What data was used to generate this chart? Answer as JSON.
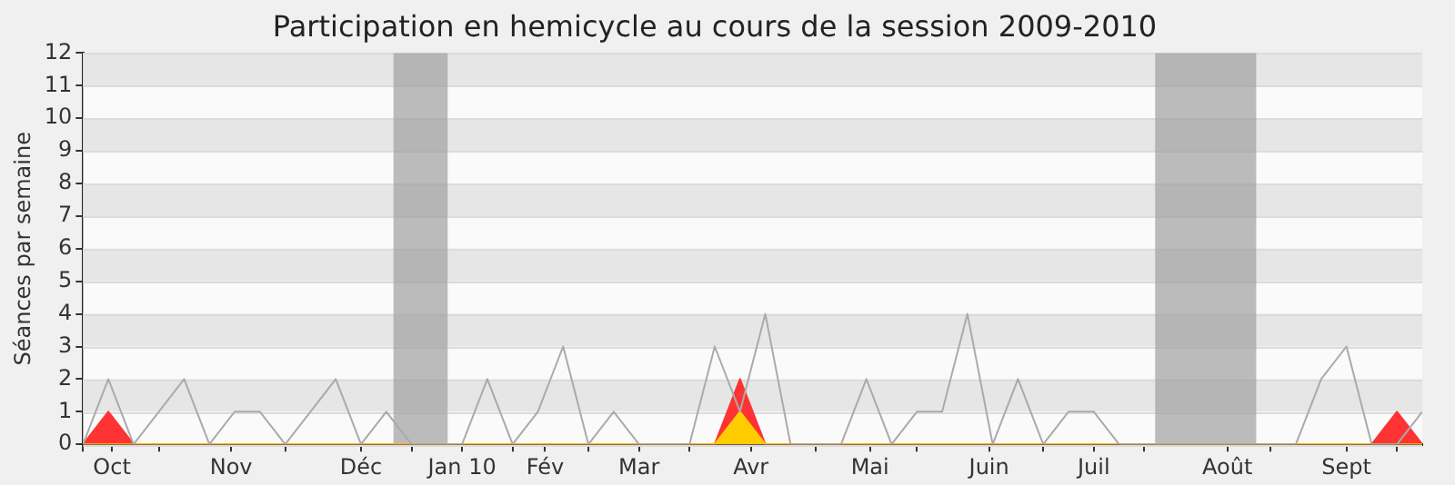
{
  "chart_data": {
    "type": "line",
    "title": "Participation en hemicycle au cours de la session 2009-2010",
    "ylabel": "Séances par semaine",
    "x": [
      "2009-09-28",
      "2009-10-05",
      "2009-10-12",
      "2009-10-19",
      "2009-10-26",
      "2009-11-02",
      "2009-11-09",
      "2009-11-16",
      "2009-11-23",
      "2009-11-30",
      "2009-12-07",
      "2009-12-14",
      "2009-12-21",
      "2009-12-28",
      "2010-01-04",
      "2010-01-11",
      "2010-01-18",
      "2010-01-25",
      "2010-02-01",
      "2010-02-08",
      "2010-02-15",
      "2010-02-22",
      "2010-03-01",
      "2010-03-08",
      "2010-03-15",
      "2010-03-22",
      "2010-03-29",
      "2010-04-05",
      "2010-04-12",
      "2010-04-19",
      "2010-04-26",
      "2010-05-03",
      "2010-05-10",
      "2010-05-17",
      "2010-05-24",
      "2010-05-31",
      "2010-06-07",
      "2010-06-14",
      "2010-06-21",
      "2010-06-28",
      "2010-07-05",
      "2010-07-12",
      "2010-07-19",
      "2010-07-26",
      "2010-08-02",
      "2010-08-09",
      "2010-08-16",
      "2010-08-23",
      "2010-08-30",
      "2010-09-06",
      "2010-09-13",
      "2010-09-20",
      "2010-09-27",
      "2010-10-04"
    ],
    "series": [
      {
        "color": "#aaaaaa",
        "values": [
          0,
          2,
          0,
          1,
          2,
          0,
          1,
          1,
          0,
          1,
          2,
          0,
          1,
          0,
          0,
          0,
          2,
          0,
          1,
          3,
          0,
          1,
          0,
          0,
          0,
          3,
          1,
          4,
          0,
          0,
          0,
          2,
          0,
          1,
          1,
          4,
          0,
          2,
          0,
          1,
          1,
          0,
          0,
          0,
          0,
          0,
          0,
          0,
          0,
          2,
          3,
          0,
          0,
          1
        ]
      },
      {
        "type": "area",
        "color": "#ff3333",
        "values": [
          0,
          1,
          0,
          0,
          0,
          0,
          0,
          0,
          0,
          0,
          0,
          0,
          0,
          0,
          0,
          0,
          0,
          0,
          0,
          0,
          0,
          0,
          0,
          0,
          0,
          0,
          2,
          0,
          0,
          0,
          0,
          0,
          0,
          0,
          0,
          0,
          0,
          0,
          0,
          0,
          0,
          0,
          0,
          0,
          0,
          0,
          0,
          0,
          0,
          0,
          0,
          0,
          1,
          0
        ]
      },
      {
        "type": "area",
        "color": "#ffcc00",
        "values": [
          0,
          0,
          0,
          0,
          0,
          0,
          0,
          0,
          0,
          0,
          0,
          0,
          0,
          0,
          0,
          0,
          0,
          0,
          0,
          0,
          0,
          0,
          0,
          0,
          0,
          0,
          1,
          0,
          0,
          0,
          0,
          0,
          0,
          0,
          0,
          0,
          0,
          0,
          0,
          0,
          0,
          0,
          0,
          0,
          0,
          0,
          0,
          0,
          0,
          0,
          0,
          0,
          0,
          0
        ]
      }
    ],
    "xlim": [
      "2009-09-28",
      "2010-10-04"
    ],
    "xticks": [
      {
        "value": "2009-09-28",
        "label": null
      },
      {
        "value": "2009-10-06",
        "label": "Oct"
      },
      {
        "value": "2009-10-19",
        "label": null
      },
      {
        "value": "2009-11-08",
        "label": "Nov"
      },
      {
        "value": "2009-11-23",
        "label": null
      },
      {
        "value": "2009-12-14",
        "label": "Déc"
      },
      {
        "value": "2009-12-28",
        "label": null
      },
      {
        "value": "2010-01-11",
        "label": "Jan 10"
      },
      {
        "value": "2010-01-25",
        "label": null
      },
      {
        "value": "2010-02-03",
        "label": "Fév"
      },
      {
        "value": "2010-02-15",
        "label": null
      },
      {
        "value": "2010-03-01",
        "label": "Mar"
      },
      {
        "value": "2010-03-15",
        "label": null
      },
      {
        "value": "2010-04-01",
        "label": "Avr"
      },
      {
        "value": "2010-04-19",
        "label": null
      },
      {
        "value": "2010-05-04",
        "label": "Mai"
      },
      {
        "value": "2010-05-17",
        "label": null
      },
      {
        "value": "2010-06-06",
        "label": "Juin"
      },
      {
        "value": "2010-06-21",
        "label": null
      },
      {
        "value": "2010-07-05",
        "label": "Juil"
      },
      {
        "value": "2010-07-19",
        "label": null
      },
      {
        "value": "2010-08-11",
        "label": "Août"
      },
      {
        "value": "2010-08-23",
        "label": null
      },
      {
        "value": "2010-09-13",
        "label": "Sept"
      },
      {
        "value": "2010-09-27",
        "label": null
      }
    ],
    "ylim": [
      0,
      12
    ],
    "yticks": [
      0,
      1,
      2,
      3,
      4,
      5,
      6,
      7,
      8,
      9,
      10,
      11,
      12
    ],
    "grid": "y",
    "bands": [
      {
        "axis": "x",
        "from": "2009-12-23",
        "to": "2010-01-07",
        "color": "#a0a0a0"
      },
      {
        "axis": "x",
        "from": "2010-07-22",
        "to": "2010-08-19",
        "color": "#a0a0a0"
      }
    ]
  }
}
